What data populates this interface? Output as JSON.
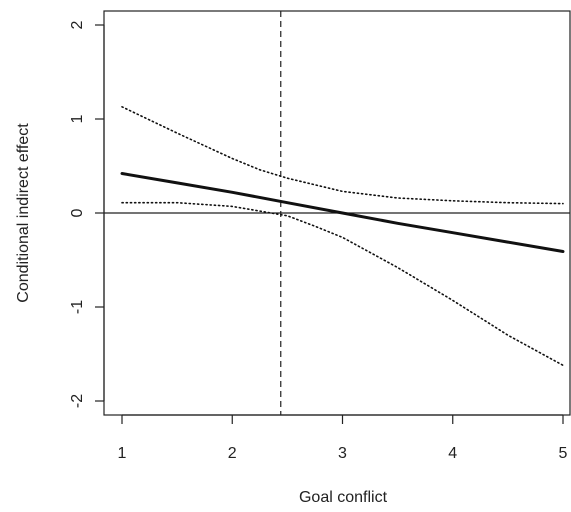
{
  "chart_data": {
    "type": "line",
    "title": "",
    "xlabel": "Goal conflict",
    "ylabel": "Conditional indirect effect",
    "xlim": [
      1,
      5
    ],
    "ylim": [
      -2.15,
      2.2
    ],
    "xticks": [
      1,
      2,
      3,
      4,
      5
    ],
    "yticks": [
      2,
      1,
      0,
      -1,
      -2
    ],
    "xtick_labels": [
      "1",
      "2",
      "3",
      "4",
      "5"
    ],
    "ytick_labels": [
      "2",
      "1",
      "0",
      "-1",
      "-2"
    ],
    "grid": false,
    "reference_lines": {
      "horizontal_y": 0,
      "vertical_x": 2.44
    },
    "series": [
      {
        "style": "solid-thick",
        "x": [
          1,
          1.5,
          2,
          2.5,
          3,
          3.5,
          4,
          4.5,
          5
        ],
        "y": [
          0.42,
          0.32,
          0.22,
          0.11,
          0.0,
          -0.11,
          -0.21,
          -0.31,
          -0.41
        ]
      },
      {
        "style": "dotted",
        "x": [
          1,
          1.5,
          2,
          2.25,
          2.5,
          3,
          3.5,
          4,
          4.5,
          5
        ],
        "y": [
          1.13,
          0.85,
          0.58,
          0.46,
          0.37,
          0.23,
          0.16,
          0.13,
          0.11,
          0.1
        ]
      },
      {
        "style": "dotted",
        "x": [
          1,
          1.5,
          2,
          2.5,
          2.75,
          3,
          3.5,
          4,
          4.5,
          5
        ],
        "y": [
          0.11,
          0.11,
          0.07,
          -0.03,
          -0.14,
          -0.26,
          -0.58,
          -0.93,
          -1.3,
          -1.62
        ]
      }
    ]
  }
}
